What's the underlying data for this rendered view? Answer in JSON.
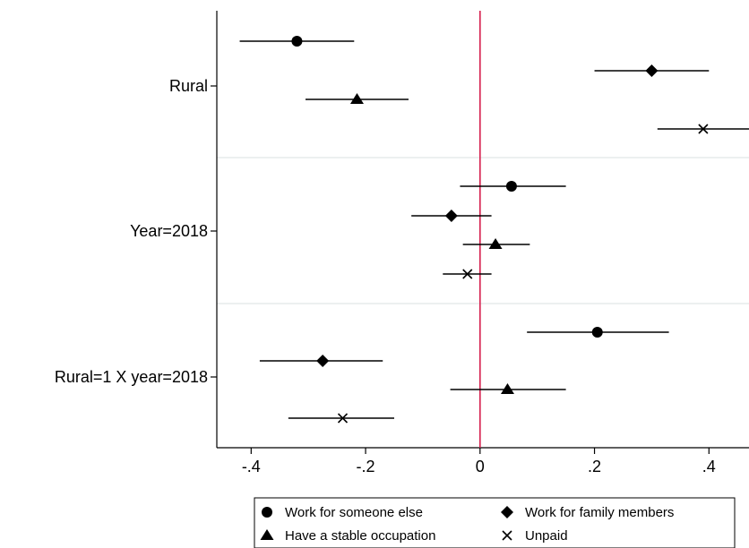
{
  "chart_data": {
    "type": "scatter",
    "subtype": "coefficient-plot",
    "title": "",
    "xlabel": "",
    "ylabel": "",
    "xlim": [
      -0.46,
      0.47
    ],
    "xticks": [
      -0.4,
      -0.2,
      0,
      0.2,
      0.4
    ],
    "xtick_labels": [
      "-.4",
      "-.2",
      "0",
      ".2",
      ".4"
    ],
    "reference_line": {
      "x": 0,
      "color": "#d6204e"
    },
    "grid": false,
    "legend_position": "bottom",
    "groups": [
      "Rural",
      "Year=2018",
      "Rural=1 X year=2018"
    ],
    "series": [
      {
        "name": "Work for someone else",
        "marker": "circle",
        "points": [
          {
            "group": "Rural",
            "estimate": -0.32,
            "ci": [
              -0.42,
              -0.22
            ]
          },
          {
            "group": "Year=2018",
            "estimate": 0.055,
            "ci": [
              -0.035,
              0.15
            ]
          },
          {
            "group": "Rural=1 X year=2018",
            "estimate": 0.205,
            "ci": [
              0.082,
              0.33
            ]
          }
        ]
      },
      {
        "name": "Work for family members",
        "marker": "diamond",
        "points": [
          {
            "group": "Rural",
            "estimate": 0.3,
            "ci": [
              0.2,
              0.4
            ]
          },
          {
            "group": "Year=2018",
            "estimate": -0.05,
            "ci": [
              -0.12,
              0.02
            ]
          },
          {
            "group": "Rural=1 X year=2018",
            "estimate": -0.275,
            "ci": [
              -0.385,
              -0.17
            ]
          }
        ]
      },
      {
        "name": "Have a stable occupation",
        "marker": "triangle",
        "points": [
          {
            "group": "Rural",
            "estimate": -0.215,
            "ci": [
              -0.305,
              -0.125
            ]
          },
          {
            "group": "Year=2018",
            "estimate": 0.027,
            "ci": [
              -0.03,
              0.087
            ]
          },
          {
            "group": "Rural=1 X year=2018",
            "estimate": 0.048,
            "ci": [
              -0.052,
              0.15
            ]
          }
        ]
      },
      {
        "name": "Unpaid",
        "marker": "x",
        "points": [
          {
            "group": "Rural",
            "estimate": 0.39,
            "ci": [
              0.31,
              0.47
            ]
          },
          {
            "group": "Year=2018",
            "estimate": -0.022,
            "ci": [
              -0.065,
              0.02
            ]
          },
          {
            "group": "Rural=1 X year=2018",
            "estimate": -0.24,
            "ci": [
              -0.335,
              -0.15
            ]
          }
        ]
      }
    ]
  }
}
